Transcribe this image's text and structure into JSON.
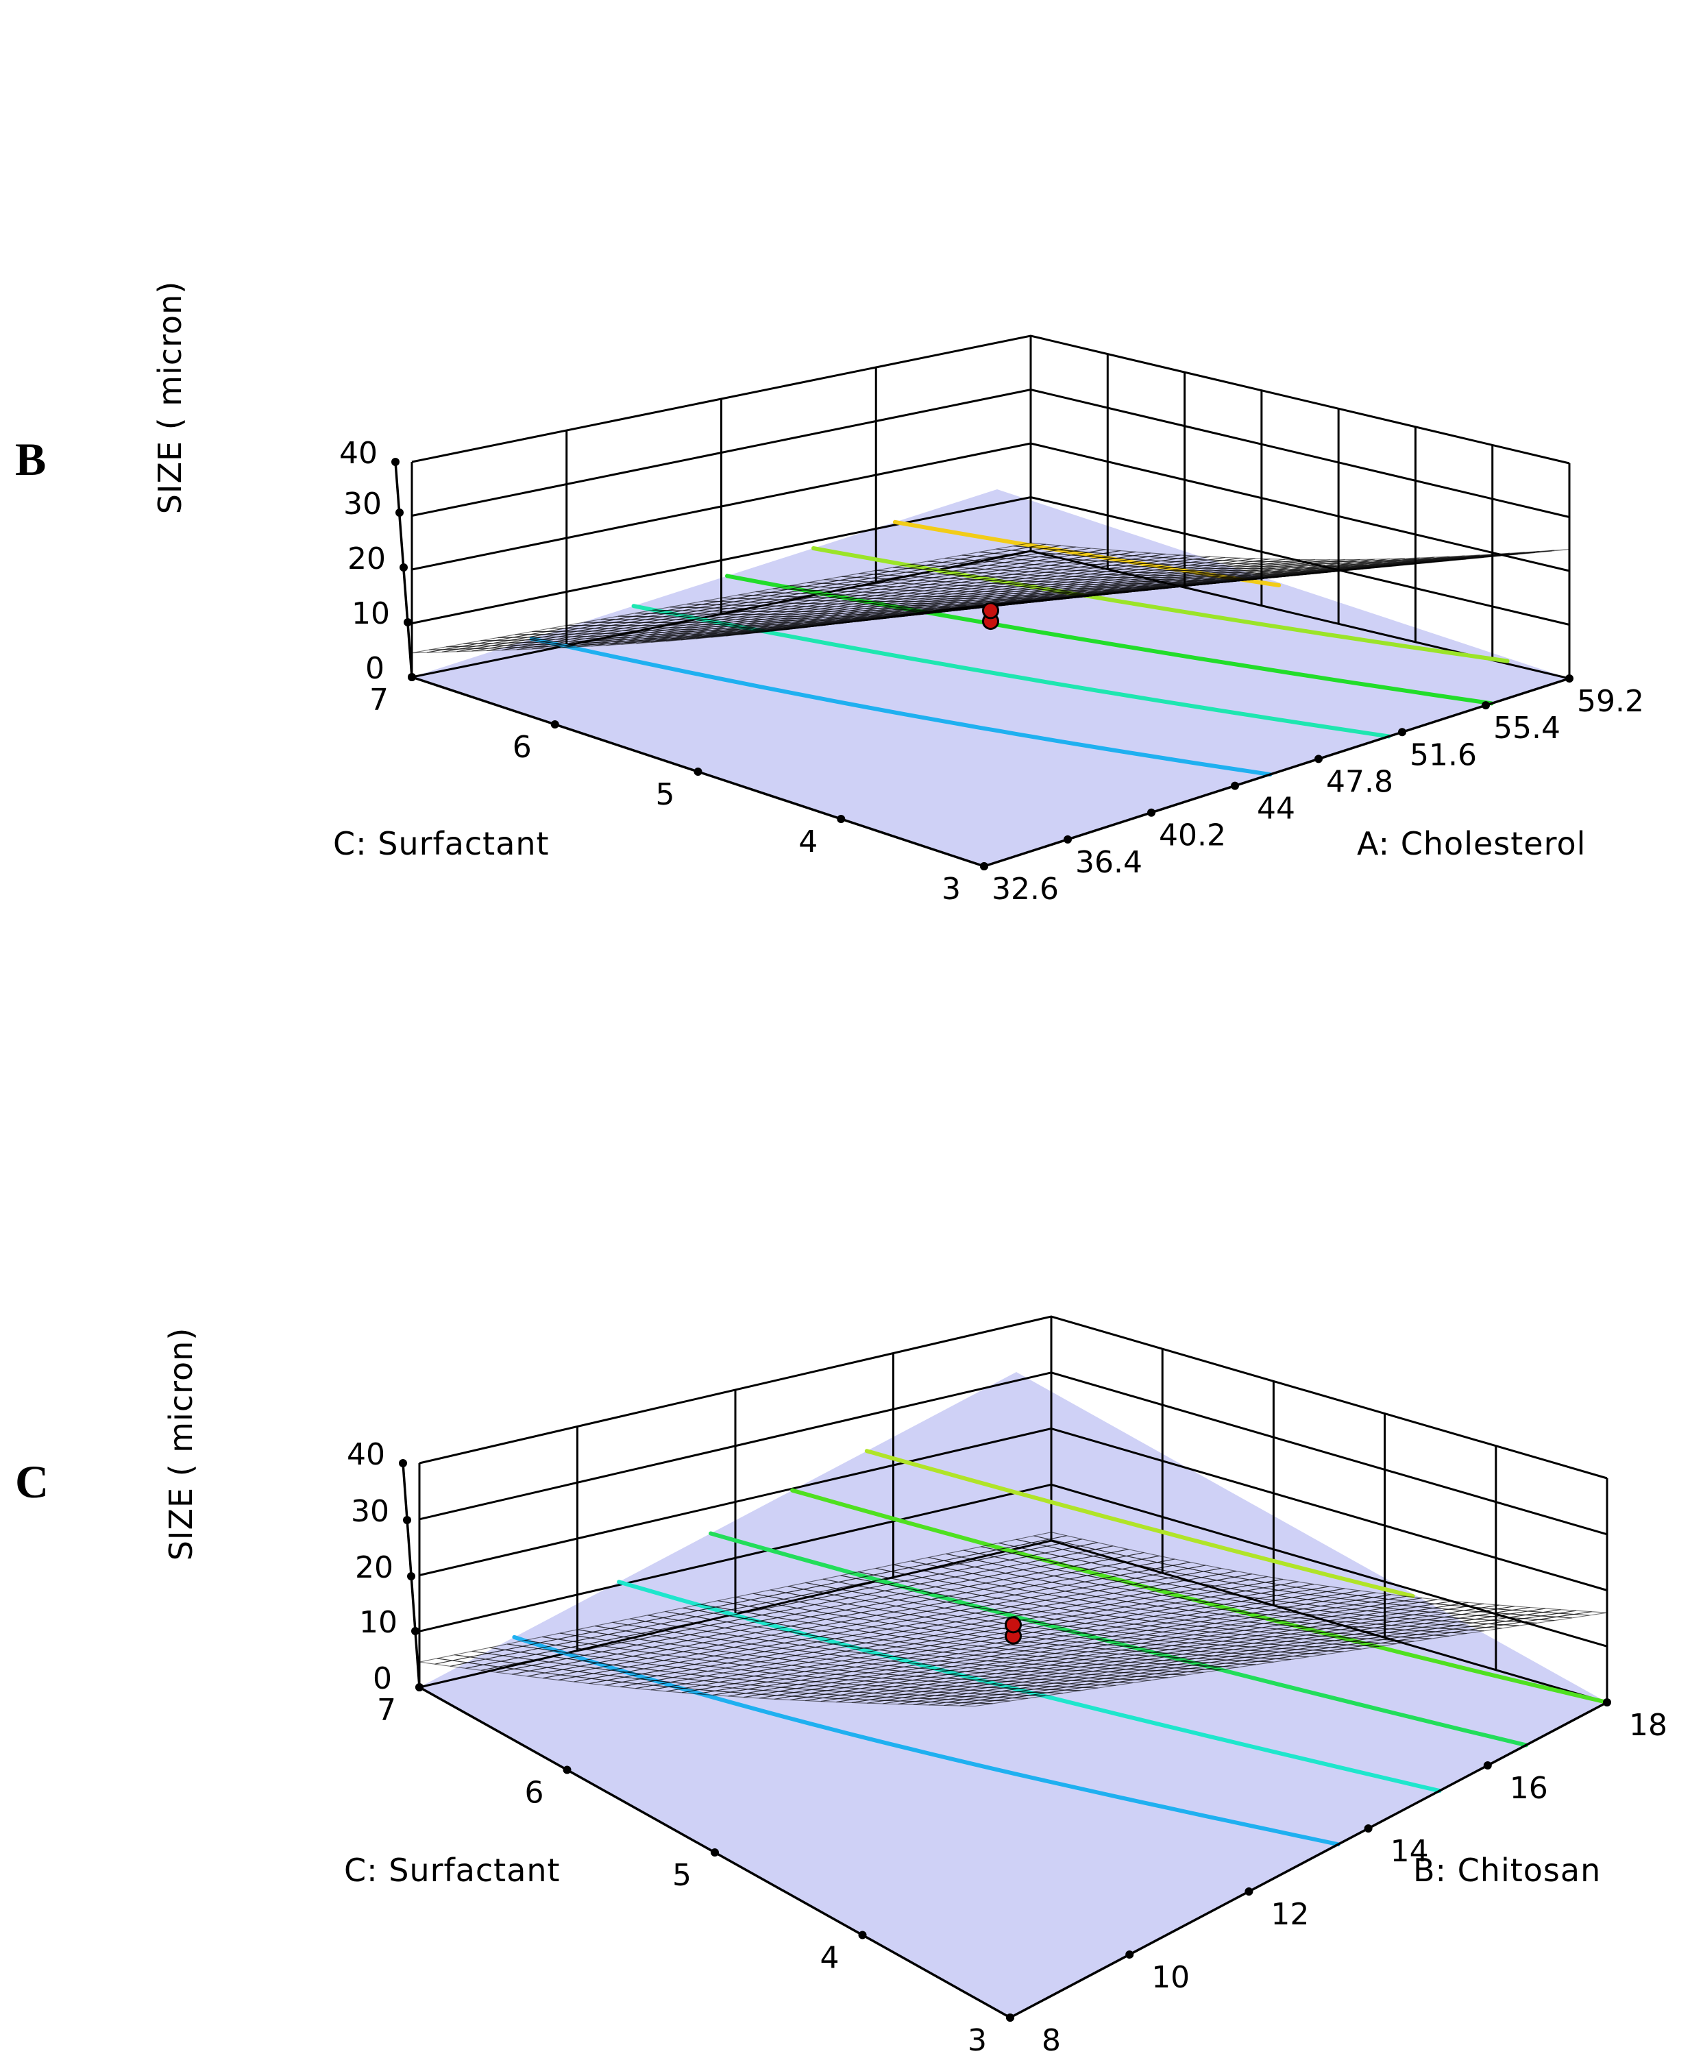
{
  "chart_data": [
    {
      "type": "surface3d",
      "panel_label": "B",
      "zlabel": "SIZE (  micron)",
      "ztick_labels": [
        "0",
        "10",
        "20",
        "30",
        "40"
      ],
      "zlim": [
        0,
        40
      ],
      "xlabel": "A: Cholesterol",
      "x_ticks": [
        32.6,
        36.4,
        40.2,
        44,
        47.8,
        51.6,
        55.4,
        59.2
      ],
      "x_tick_labels": [
        "32.6",
        "36.4",
        "40.2",
        "44",
        "47.8",
        "51.6",
        "55.4",
        "59.2"
      ],
      "ylabel": "C: Surfactant",
      "y_ticks": [
        3,
        4,
        5,
        6,
        7
      ],
      "y_tick_labels": [
        "3",
        "4",
        "5",
        "6",
        "7"
      ],
      "surface_corners": {
        "x_min_y_min": 1.5,
        "x_max_y_min": 24.0,
        "x_min_y_max": 4.5,
        "x_max_y_max": 36.5
      },
      "contour_levels": [
        {
          "level": 10,
          "color": "#1fb0f0"
        },
        {
          "level": 15,
          "color": "#1ee6b0"
        },
        {
          "level": 20,
          "color": "#22dd2a"
        },
        {
          "level": 25,
          "color": "#9be428"
        },
        {
          "level": 30,
          "color": "#f2cc18"
        }
      ],
      "design_points": [
        {
          "x": 45.9,
          "y": 5,
          "z": 10.5
        },
        {
          "x": 45.9,
          "y": 5,
          "z": 12.5
        }
      ]
    },
    {
      "type": "surface3d",
      "panel_label": "C",
      "zlabel": "SIZE (  micron)",
      "ztick_labels": [
        "0",
        "10",
        "20",
        "30",
        "40"
      ],
      "zlim": [
        0,
        40
      ],
      "xlabel": "B: Chitosan",
      "x_ticks": [
        8,
        10,
        12,
        14,
        16,
        18
      ],
      "x_tick_labels": [
        "8",
        "10",
        "12",
        "14",
        "16",
        "18"
      ],
      "ylabel": "C: Surfactant",
      "y_ticks": [
        3,
        4,
        5,
        6,
        7
      ],
      "y_tick_labels": [
        "3",
        "4",
        "5",
        "6",
        "7"
      ],
      "surface_corners": {
        "x_min_y_min": 1.5,
        "x_max_y_min": 16.0,
        "x_min_y_max": 4.5,
        "x_max_y_max": 25.5
      },
      "contour_levels": [
        {
          "level": 7,
          "color": "#1fb0f0"
        },
        {
          "level": 10,
          "color": "#1ee6cc"
        },
        {
          "level": 13,
          "color": "#22dd5a"
        },
        {
          "level": 16,
          "color": "#4fe020"
        },
        {
          "level": 19,
          "color": "#b0e428"
        }
      ],
      "design_points": [
        {
          "x": 13,
          "y": 5,
          "z": 10.5
        },
        {
          "x": 13,
          "y": 5,
          "z": 12.5
        }
      ]
    }
  ]
}
